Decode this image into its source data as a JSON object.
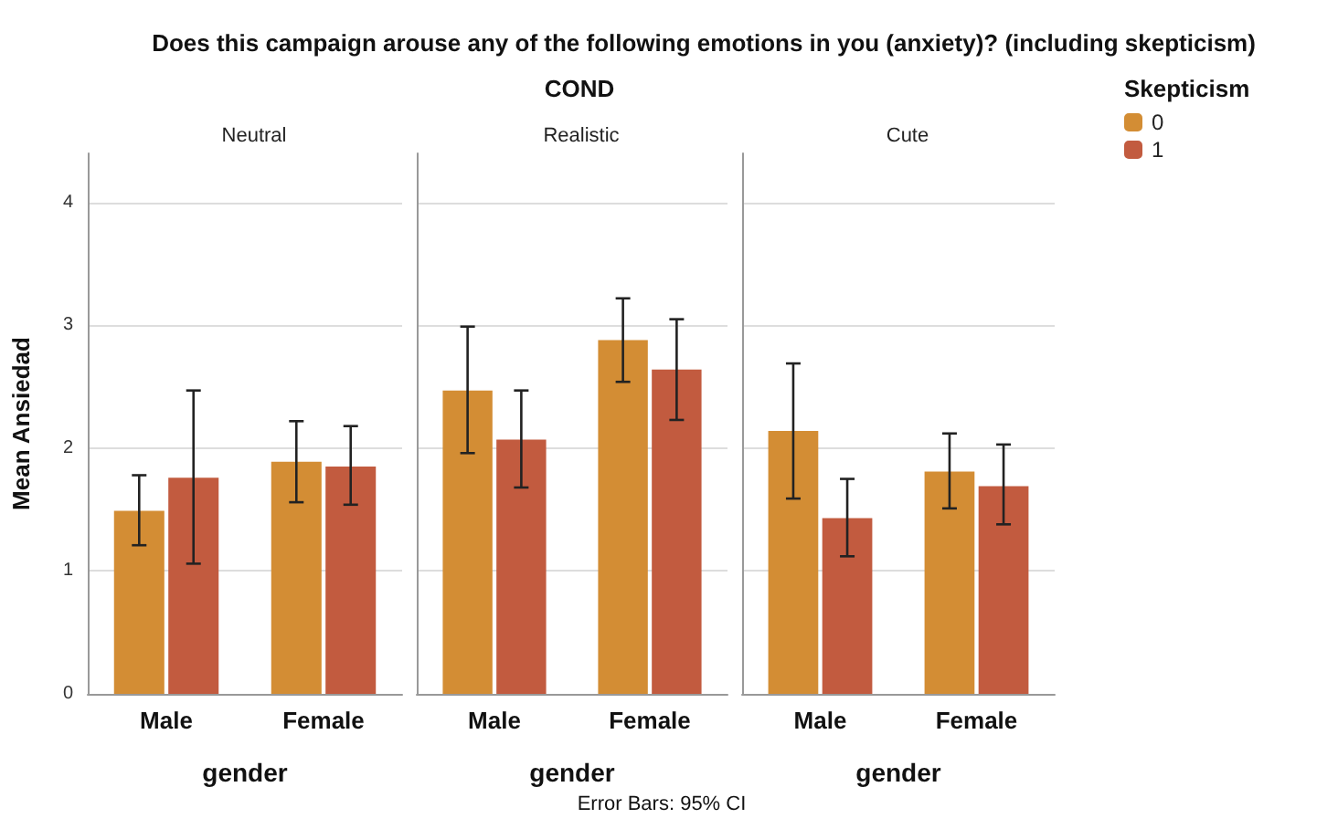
{
  "chart_data": [
    {
      "type": "bar",
      "title": "Neutral",
      "xlabel": "gender",
      "ylabel": "Mean Ansiedad",
      "legend_title": "Skepticism",
      "legend": "right",
      "annotations": [
        "Does this campaign arouse any of the following emotions in you (anxiety)? (including skepticism)",
        "COND",
        "Error Bars: 95% CI"
      ],
      "categories": [
        "Male",
        "Female"
      ],
      "ylim": [
        0,
        4.4
      ],
      "yticks": [
        0,
        1,
        2,
        3,
        4
      ],
      "grid": "y",
      "series": [
        {
          "name": "0",
          "color": "#d38d34",
          "values": [
            1.49,
            1.89
          ],
          "errors": [
            [
              1.21,
              1.78
            ],
            [
              1.56,
              2.22
            ]
          ]
        },
        {
          "name": "1",
          "color": "#c25b3f",
          "values": [
            1.76,
            1.85
          ],
          "errors": [
            [
              1.06,
              2.47
            ],
            [
              1.54,
              2.18
            ]
          ]
        }
      ]
    },
    {
      "type": "bar",
      "title": "Realistic",
      "xlabel": "gender",
      "tick_labels": "x",
      "categories": [
        "Male",
        "Female"
      ],
      "ylim": [
        0,
        4.4
      ],
      "yticks": [
        0,
        1,
        2,
        3,
        4
      ],
      "grid": "y",
      "series": [
        {
          "color": "#d38d34",
          "values": [
            2.47,
            2.88
          ],
          "errors": [
            [
              1.96,
              2.99
            ],
            [
              2.54,
              3.22
            ]
          ]
        },
        {
          "color": "#c25b3f",
          "values": [
            2.07,
            2.64
          ],
          "errors": [
            [
              1.68,
              2.47
            ],
            [
              2.23,
              3.05
            ]
          ]
        }
      ]
    },
    {
      "type": "bar",
      "title": "Cute",
      "xlabel": "gender",
      "tick_labels": "x",
      "categories": [
        "Male",
        "Female"
      ],
      "ylim": [
        0,
        4.4
      ],
      "yticks": [
        0,
        1,
        2,
        3,
        4
      ],
      "grid": "y",
      "series": [
        {
          "color": "#d38d34",
          "values": [
            2.14,
            1.81
          ],
          "errors": [
            [
              1.59,
              2.69
            ],
            [
              1.51,
              2.12
            ]
          ]
        },
        {
          "color": "#c25b3f",
          "values": [
            1.43,
            1.69
          ],
          "errors": [
            [
              1.12,
              1.75
            ],
            [
              1.38,
              2.03
            ]
          ]
        }
      ]
    }
  ]
}
